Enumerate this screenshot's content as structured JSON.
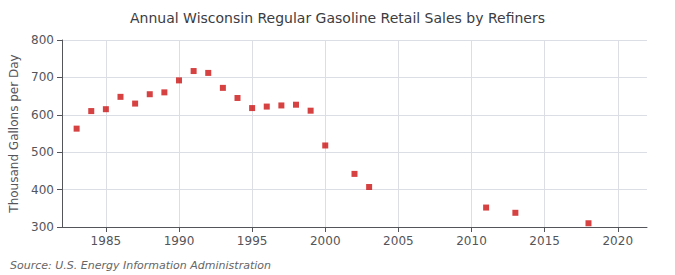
{
  "chart_data": {
    "type": "scatter",
    "title": "Annual Wisconsin Regular Gasoline Retail Sales by Refiners",
    "ylabel": "Thousand Gallons per Day",
    "annotations": [
      "Source: U.S. Energy Information Administration"
    ],
    "x": [
      1983,
      1984,
      1985,
      1986,
      1987,
      1988,
      1989,
      1990,
      1991,
      1992,
      1993,
      1994,
      1995,
      1996,
      1997,
      1998,
      1999,
      2000,
      2002,
      2003,
      2011,
      2013,
      2018
    ],
    "values": [
      563,
      610,
      615,
      648,
      630,
      655,
      660,
      692,
      717,
      712,
      672,
      645,
      618,
      622,
      625,
      627,
      611,
      518,
      442,
      407,
      352,
      338,
      310
    ],
    "color": "#cc1111",
    "marker": "square",
    "xlim": [
      1982,
      2022
    ],
    "xticks": [
      1985,
      1990,
      1995,
      2000,
      2005,
      2010,
      2015,
      2020
    ],
    "ylim": [
      300,
      800
    ],
    "yticks": [
      300,
      400,
      500,
      600,
      700,
      800
    ],
    "grid": true
  }
}
